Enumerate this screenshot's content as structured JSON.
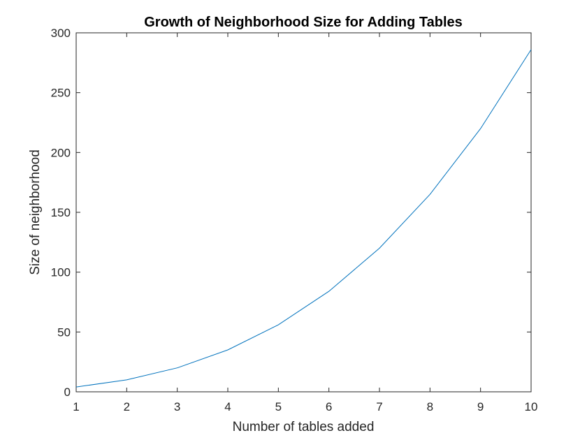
{
  "chart_data": {
    "type": "line",
    "title": "Growth of Neighborhood Size for Adding Tables",
    "xlabel": "Number of tables added",
    "ylabel": "Size of neighborhood",
    "x": [
      1,
      2,
      3,
      4,
      5,
      6,
      7,
      8,
      9,
      10
    ],
    "series": [
      {
        "values": [
          4,
          10,
          20,
          35,
          56,
          84,
          120,
          165,
          220,
          286
        ]
      }
    ],
    "xlim": [
      1,
      10
    ],
    "ylim": [
      0,
      300
    ],
    "xticks": [
      1,
      2,
      3,
      4,
      5,
      6,
      7,
      8,
      9,
      10
    ],
    "yticks": [
      0,
      50,
      100,
      150,
      200,
      250,
      300
    ],
    "grid": false,
    "line_color": "#0072BD",
    "axis_color": "#262626"
  }
}
